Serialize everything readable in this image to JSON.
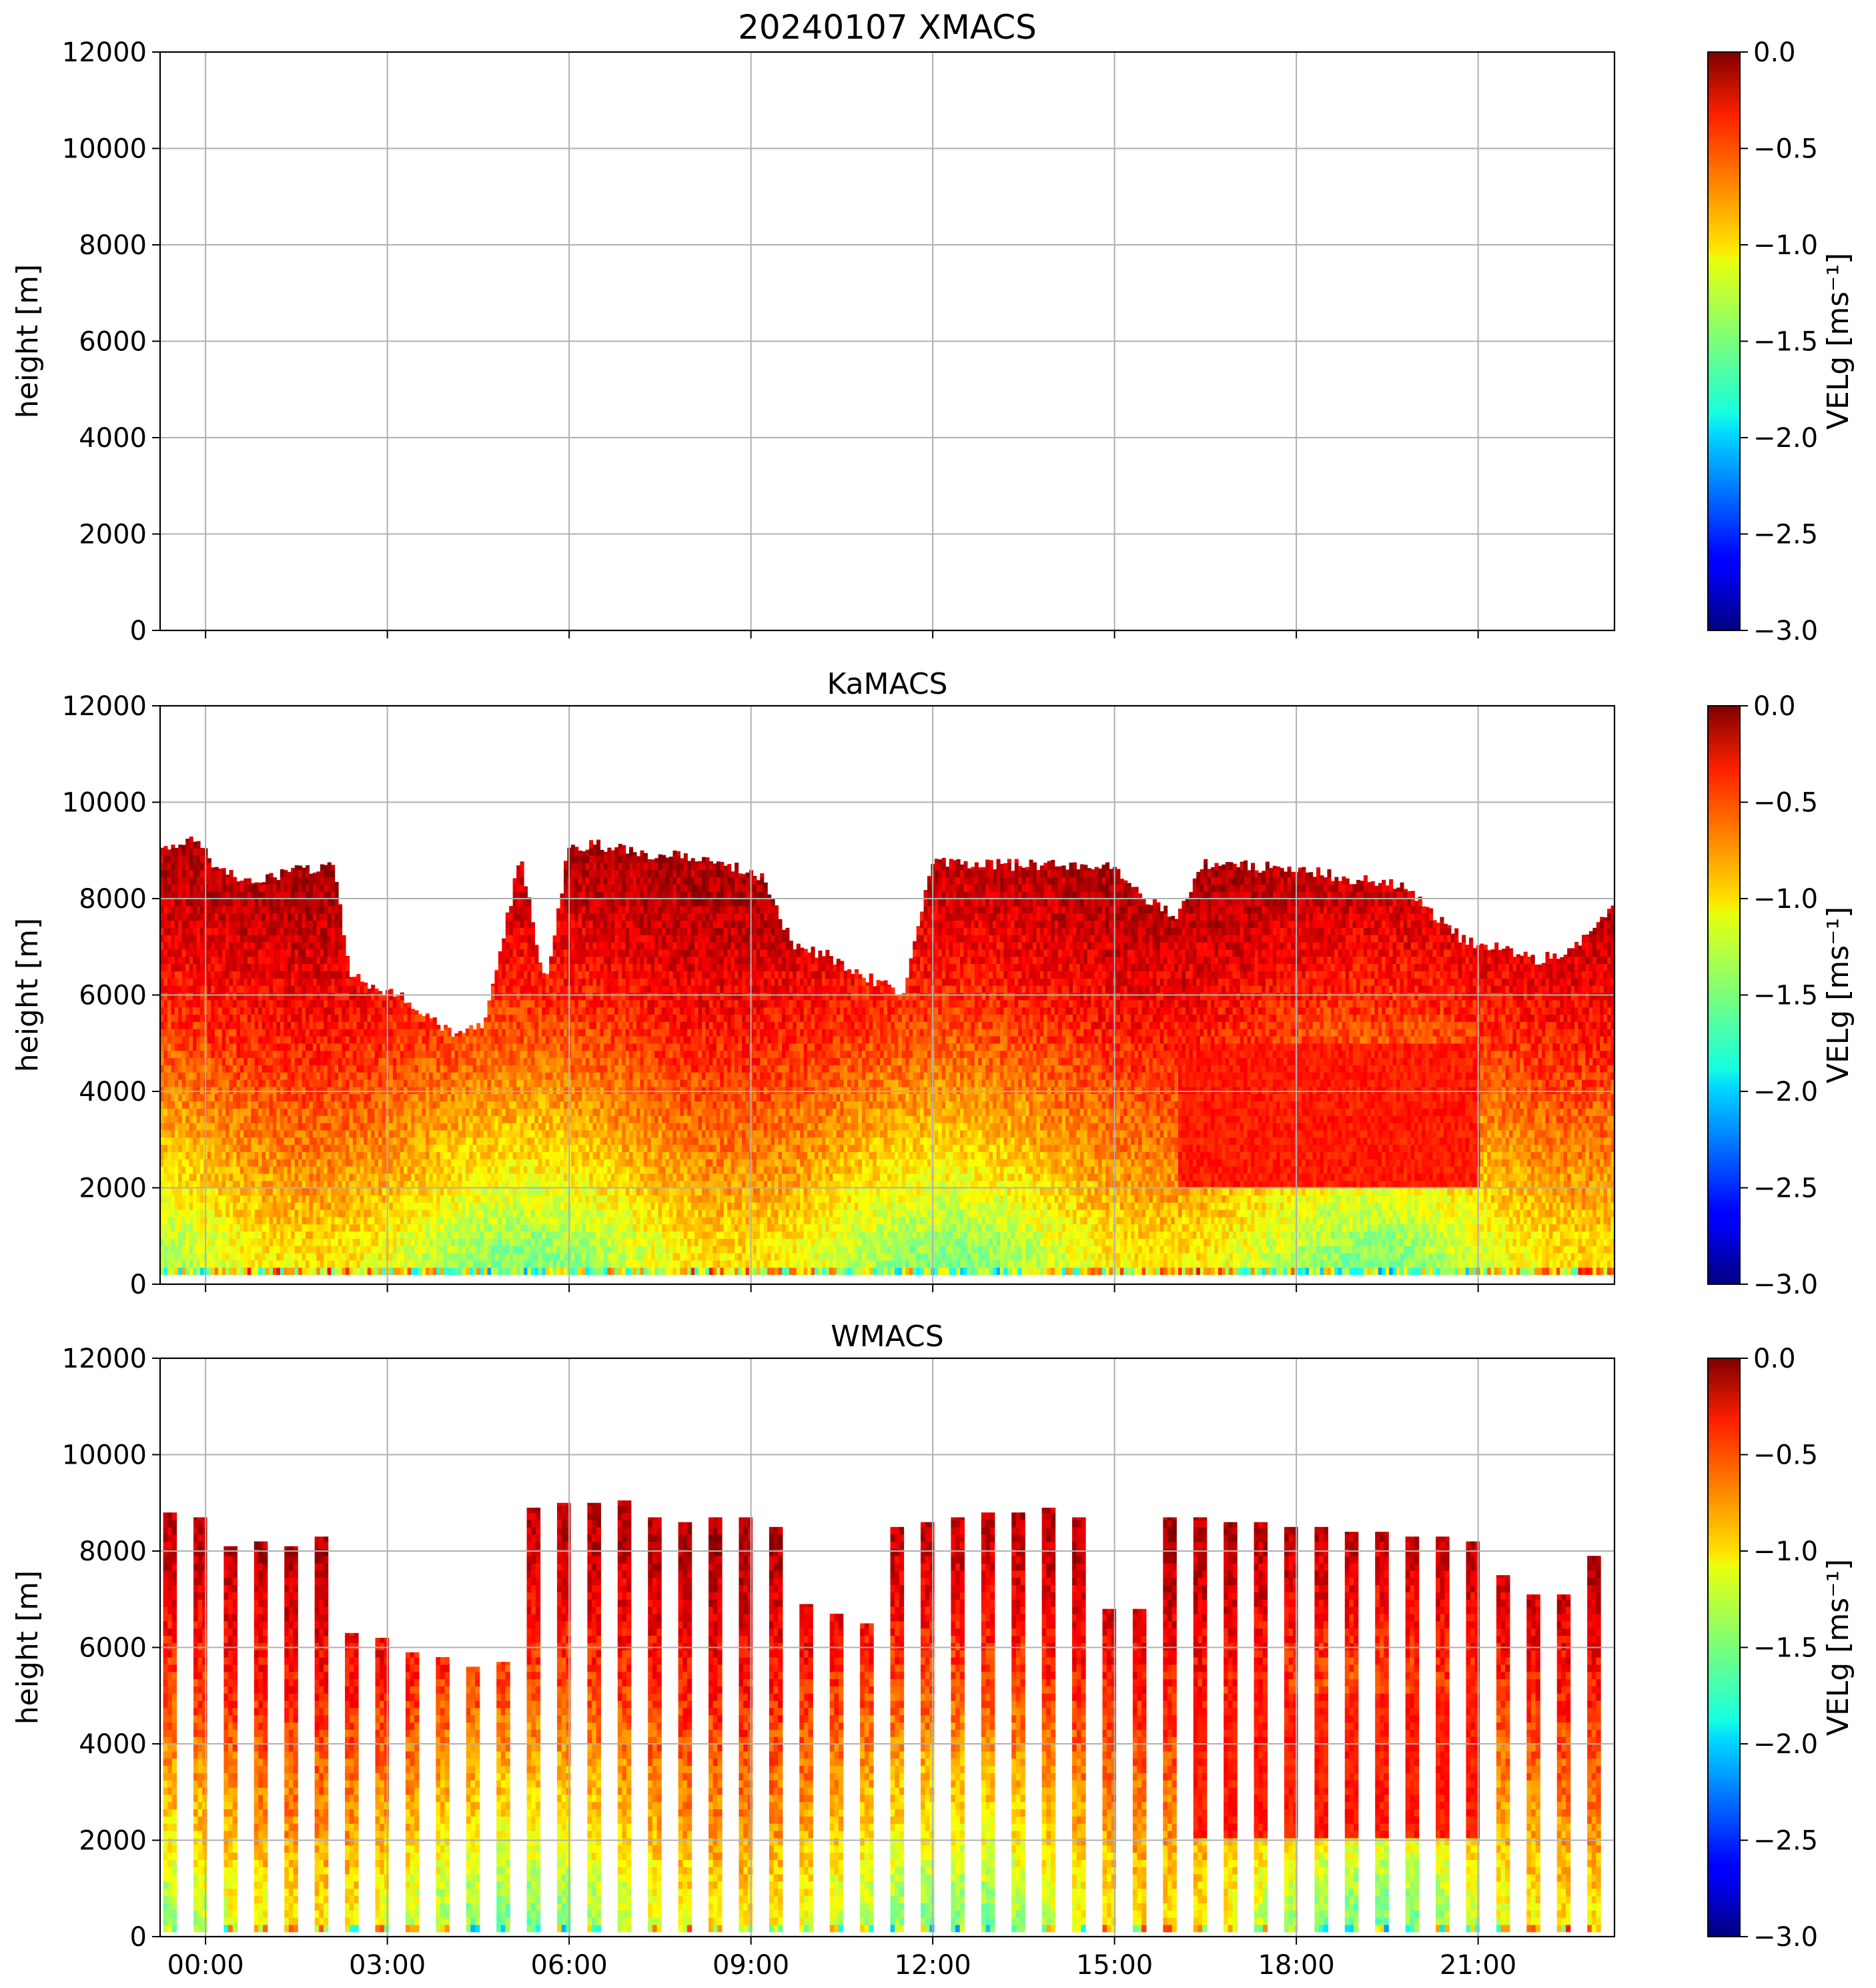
{
  "figure": {
    "suptitle_date": "20240107",
    "x_tick_labels": [
      "00:00",
      "03:00",
      "06:00",
      "09:00",
      "12:00",
      "15:00",
      "18:00",
      "21:00"
    ]
  },
  "chart_data": [
    {
      "type": "heatmap",
      "title": "XMACS",
      "ylabel": "height [m]",
      "xlim_hours": [
        -0.75,
        23.25
      ],
      "ylim": [
        0,
        12000
      ],
      "y_ticks": [
        0,
        2000,
        4000,
        6000,
        8000,
        10000,
        12000
      ],
      "x_tick_hours": [
        0,
        3,
        6,
        9,
        12,
        15,
        18,
        21
      ],
      "grid": true,
      "has_data": false,
      "colorbar": {
        "label": "VELg [ms⁻¹]",
        "range": [
          -3.0,
          0.0
        ],
        "ticks": [
          "0.0",
          "−0.5",
          "−1.0",
          "−1.5",
          "−2.0",
          "−2.5",
          "−3.0"
        ],
        "colormap": "jet"
      }
    },
    {
      "type": "heatmap",
      "title": "KaMACS",
      "ylabel": "height [m]",
      "xlim_hours": [
        -0.75,
        23.25
      ],
      "ylim": [
        0,
        12000
      ],
      "y_ticks": [
        0,
        2000,
        4000,
        6000,
        8000,
        10000,
        12000
      ],
      "x_tick_hours": [
        0,
        3,
        6,
        9,
        12,
        15,
        18,
        21
      ],
      "grid": true,
      "has_data": true,
      "sampling": "continuous",
      "lowest_range_gate_m": 200,
      "echo_top_profile": {
        "hours": [
          -0.75,
          -0.2,
          0.2,
          0.8,
          1.5,
          2.1,
          2.4,
          3.2,
          4.1,
          4.6,
          5.2,
          5.6,
          6.0,
          6.5,
          7.5,
          8.5,
          9.2,
          9.7,
          10.3,
          11.5,
          12.0,
          13.0,
          14.0,
          15.0,
          15.5,
          16.0,
          16.5,
          17.0,
          18.0,
          19.0,
          19.8,
          20.2,
          20.8,
          21.3,
          22.0,
          22.6,
          23.25
        ],
        "top_m": [
          9000,
          9300,
          8600,
          8300,
          8600,
          8700,
          6400,
          6000,
          5200,
          5400,
          8900,
          6200,
          9100,
          9100,
          8900,
          8800,
          8400,
          7000,
          6800,
          6000,
          8800,
          8700,
          8700,
          8700,
          8000,
          7600,
          8700,
          8700,
          8600,
          8400,
          8300,
          7700,
          7100,
          7000,
          6700,
          7000,
          7800
        ]
      },
      "velocity_profile_by_height": {
        "height_m": [
          200,
          1000,
          2000,
          3000,
          4000,
          5000,
          6000,
          7000,
          8000,
          9000
        ],
        "typical_velg_ms": [
          -1.3,
          -1.2,
          -1.0,
          -0.85,
          -0.7,
          -0.55,
          -0.42,
          -0.3,
          -0.2,
          -0.15
        ]
      },
      "colorbar": {
        "label": "VELg [ms⁻¹]",
        "range": [
          -3.0,
          0.0
        ],
        "ticks": [
          "0.0",
          "−0.5",
          "−1.0",
          "−1.5",
          "−2.0",
          "−2.5",
          "−3.0"
        ],
        "colormap": "jet"
      }
    },
    {
      "type": "heatmap",
      "title": "WMACS",
      "ylabel": "height [m]",
      "xlim_hours": [
        -0.75,
        23.25
      ],
      "ylim": [
        0,
        12000
      ],
      "y_ticks": [
        0,
        2000,
        4000,
        6000,
        8000,
        10000,
        12000
      ],
      "x_tick_hours": [
        0,
        3,
        6,
        9,
        12,
        15,
        18,
        21
      ],
      "grid": true,
      "has_data": true,
      "sampling": "intermittent columns",
      "lowest_range_gate_m": 100,
      "columns": {
        "start_hours": [
          -0.7,
          -0.2,
          0.3,
          0.8,
          1.3,
          1.8,
          2.3,
          2.8,
          3.3,
          3.8,
          4.3,
          4.8,
          5.3,
          5.8,
          6.3,
          6.8,
          7.3,
          7.8,
          8.3,
          8.8,
          9.3,
          9.8,
          10.3,
          10.8,
          11.3,
          11.8,
          12.3,
          12.8,
          13.3,
          13.8,
          14.3,
          14.8,
          15.3,
          15.8,
          16.3,
          16.8,
          17.3,
          17.8,
          18.3,
          18.8,
          19.3,
          19.8,
          20.3,
          20.8,
          21.3,
          21.8,
          22.3,
          22.8
        ],
        "top_m": [
          8800,
          8700,
          8100,
          8200,
          8100,
          8300,
          6300,
          6200,
          5900,
          5800,
          5600,
          5700,
          8900,
          9000,
          9000,
          9050,
          8700,
          8600,
          8700,
          8700,
          8500,
          6900,
          6700,
          6500,
          8500,
          8600,
          8700,
          8800,
          8800,
          8900,
          8700,
          6800,
          6800,
          8700,
          8700,
          8600,
          8600,
          8500,
          8500,
          8400,
          8400,
          8300,
          8300,
          8200,
          7500,
          7100,
          7100,
          7900
        ]
      },
      "colorbar": {
        "label": "VELg [ms⁻¹]",
        "range": [
          -3.0,
          0.0
        ],
        "ticks": [
          "0.0",
          "−0.5",
          "−1.0",
          "−1.5",
          "−2.0",
          "−2.5",
          "−3.0"
        ],
        "colormap": "jet"
      }
    }
  ]
}
